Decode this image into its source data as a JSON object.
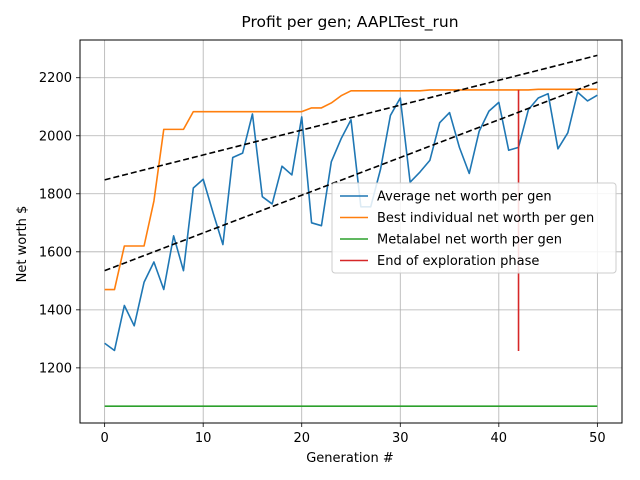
{
  "chart_data": {
    "type": "line",
    "title": "Profit per gen; AAPLTest_run",
    "xlabel": "Generation #",
    "ylabel": "Net worth $",
    "xlim": [
      -2.5,
      52.5
    ],
    "ylim": [
      1010,
      2330
    ],
    "xticks": [
      0,
      10,
      20,
      30,
      40,
      50
    ],
    "yticks": [
      1200,
      1400,
      1600,
      1800,
      2000,
      2200
    ],
    "grid": true,
    "legend_position": "right",
    "series": [
      {
        "name": "Average net worth per gen",
        "color": "#1f77b4",
        "x": [
          0,
          1,
          2,
          3,
          4,
          5,
          6,
          7,
          8,
          9,
          10,
          11,
          12,
          13,
          14,
          15,
          16,
          17,
          18,
          19,
          20,
          21,
          22,
          23,
          24,
          25,
          26,
          27,
          28,
          29,
          30,
          31,
          32,
          33,
          34,
          35,
          36,
          37,
          38,
          39,
          40,
          41,
          42,
          43,
          44,
          45,
          46,
          47,
          48,
          49,
          50
        ],
        "y": [
          1285,
          1260,
          1415,
          1345,
          1495,
          1565,
          1470,
          1655,
          1535,
          1820,
          1850,
          1735,
          1625,
          1925,
          1940,
          2075,
          1790,
          1765,
          1895,
          1865,
          2065,
          1700,
          1690,
          1910,
          1990,
          2055,
          1755,
          1755,
          1885,
          2070,
          2130,
          1840,
          1875,
          1915,
          2045,
          2080,
          1960,
          1870,
          2015,
          2085,
          2115,
          1950,
          1960,
          2090,
          2130,
          2145,
          1955,
          2010,
          2150,
          2120,
          2140
        ]
      },
      {
        "name": "Best individual net worth per gen",
        "color": "#ff7f0e",
        "x": [
          0,
          1,
          2,
          3,
          4,
          5,
          6,
          7,
          8,
          9,
          10,
          11,
          12,
          13,
          14,
          15,
          16,
          17,
          18,
          19,
          20,
          21,
          22,
          23,
          24,
          25,
          26,
          27,
          28,
          29,
          30,
          31,
          32,
          33,
          34,
          35,
          36,
          37,
          38,
          39,
          40,
          41,
          42,
          43,
          44,
          45,
          46,
          47,
          48,
          49,
          50
        ],
        "y": [
          1470,
          1470,
          1620,
          1620,
          1620,
          1775,
          2022,
          2022,
          2022,
          2083,
          2083,
          2083,
          2083,
          2083,
          2083,
          2083,
          2083,
          2083,
          2083,
          2083,
          2083,
          2096,
          2096,
          2113,
          2138,
          2155,
          2155,
          2155,
          2155,
          2155,
          2155,
          2155,
          2155,
          2158,
          2158,
          2158,
          2158,
          2158,
          2158,
          2158,
          2158,
          2158,
          2158,
          2158,
          2160,
          2160,
          2160,
          2160,
          2160,
          2160,
          2160
        ]
      },
      {
        "name": "Metalabel net worth per gen",
        "color": "#2ca02c",
        "x": [
          0,
          50
        ],
        "y": [
          1068,
          1068
        ]
      }
    ],
    "vline": {
      "name": "End of exploration phase",
      "color": "#d62728",
      "x": 42,
      "y0": 1258,
      "y1": 2158
    },
    "trendlines": [
      {
        "color": "#000000",
        "x": [
          0,
          50
        ],
        "y": [
          1848,
          2277
        ]
      },
      {
        "color": "#000000",
        "x": [
          0,
          50
        ],
        "y": [
          1535,
          2185
        ]
      }
    ]
  }
}
